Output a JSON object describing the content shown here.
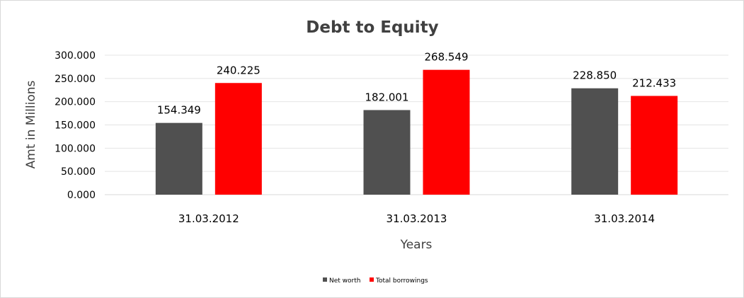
{
  "chart_data": {
    "type": "bar",
    "title": "Debt to Equity",
    "xlabel": "Years",
    "ylabel": "Amt in Millions",
    "categories": [
      "31.03.2012",
      "31.03.2013",
      "31.03.2014"
    ],
    "series": [
      {
        "name": "Net worth",
        "values": [
          154.349,
          182.001,
          228.85
        ],
        "color": "#505050"
      },
      {
        "name": "Total borrowings",
        "values": [
          240.225,
          268.549,
          212.433
        ],
        "color": "#ff0000"
      }
    ],
    "value_labels": [
      [
        "154.349",
        "182.001",
        "228.850"
      ],
      [
        "240.225",
        "268.549",
        "212.433"
      ]
    ],
    "ylim": [
      0,
      300
    ],
    "yticks": [
      0,
      50,
      100,
      150,
      200,
      250,
      300
    ],
    "ytick_labels": [
      "0.000",
      "50.000",
      "100.000",
      "150.000",
      "200.000",
      "250.000",
      "300.000"
    ],
    "grid": true,
    "legend_position": "bottom"
  }
}
